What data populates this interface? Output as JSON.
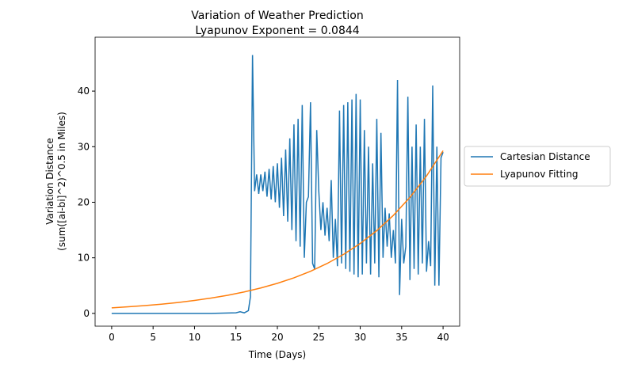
{
  "chart_data": {
    "type": "line",
    "title": [
      "Variation of Weather Prediction",
      "Lyapunov Exponent = 0.0844"
    ],
    "x_label": "Time (Days)",
    "y_label": [
      "Variation Distance",
      "(sum([ai-bi]^2)^0.5 in Miles)"
    ],
    "xlim": [
      -2,
      42
    ],
    "ylim": [
      -2.3,
      49.7
    ],
    "xticks": [
      0,
      5,
      10,
      15,
      20,
      25,
      30,
      35,
      40
    ],
    "yticks": [
      0,
      10,
      20,
      30,
      40
    ],
    "legend": "right",
    "series": [
      {
        "name": "Cartesian Distance",
        "color": "#1f77b4",
        "x": [
          0,
          4,
          8,
          12,
          15,
          15.5,
          16,
          16.5,
          16.75,
          17,
          17.25,
          17.5,
          17.75,
          18,
          18.25,
          18.5,
          18.75,
          19,
          19.25,
          19.5,
          19.75,
          20,
          20.25,
          20.5,
          20.75,
          21,
          21.25,
          21.5,
          21.75,
          22,
          22.25,
          22.5,
          22.75,
          23,
          23.25,
          23.5,
          23.75,
          24,
          24.25,
          24.5,
          24.75,
          25,
          25.25,
          25.5,
          25.75,
          26,
          26.25,
          26.5,
          26.75,
          27,
          27.25,
          27.5,
          27.75,
          28,
          28.25,
          28.5,
          28.75,
          29,
          29.25,
          29.5,
          29.75,
          30,
          30.25,
          30.5,
          30.75,
          31,
          31.25,
          31.5,
          31.75,
          32,
          32.25,
          32.5,
          32.75,
          33,
          33.25,
          33.5,
          33.75,
          34,
          34.25,
          34.5,
          34.75,
          35,
          35.25,
          35.5,
          35.75,
          36,
          36.25,
          36.5,
          36.75,
          37,
          37.25,
          37.5,
          37.75,
          38,
          38.25,
          38.5,
          38.75,
          39,
          39.25,
          39.5,
          39.75,
          40
        ],
        "values": [
          0,
          0,
          0,
          0,
          0.1,
          0.3,
          0.1,
          0.5,
          3,
          46.5,
          22,
          25,
          21.5,
          25,
          22,
          25.5,
          21,
          26,
          20.5,
          26.5,
          20,
          27,
          19,
          28,
          17.5,
          29.5,
          16.5,
          31.5,
          15,
          34,
          13,
          35,
          12,
          37.5,
          10,
          20,
          21,
          38,
          9,
          8,
          33,
          22,
          15,
          20,
          14,
          19,
          13,
          24,
          10,
          17,
          8.5,
          36.5,
          9,
          37.5,
          8,
          38,
          7.5,
          38.5,
          7,
          39.5,
          6.5,
          38.5,
          7,
          33,
          9,
          30,
          7,
          27,
          9,
          35,
          6.5,
          32.5,
          10,
          19,
          12,
          18,
          10,
          15,
          9,
          42,
          3.3,
          17,
          9,
          12,
          39,
          6,
          30,
          8,
          34,
          7,
          30,
          9,
          35,
          7.5,
          13,
          8.5,
          41,
          5,
          30,
          5,
          28,
          29
        ]
      },
      {
        "name": "Lyapunov Fitting",
        "color": "#ff7f0e",
        "x": [
          0,
          2,
          4,
          6,
          8,
          10,
          12,
          14,
          16,
          18,
          20,
          22,
          24,
          26,
          28,
          30,
          32,
          34,
          36,
          38,
          40
        ],
        "values": [
          1.0,
          1.184,
          1.402,
          1.659,
          1.964,
          2.326,
          2.753,
          3.26,
          3.859,
          4.569,
          5.409,
          6.404,
          7.582,
          8.976,
          10.63,
          12.58,
          14.9,
          17.64,
          20.88,
          24.72,
          29.27
        ]
      }
    ]
  }
}
